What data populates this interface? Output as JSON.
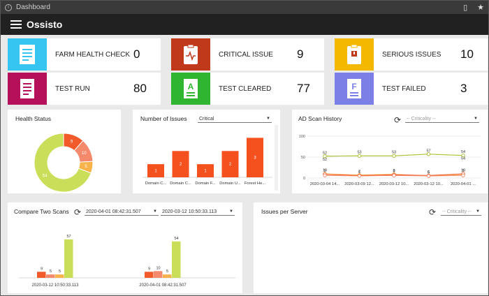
{
  "window": {
    "title": "Dashboard"
  },
  "app": {
    "title": "Ossisto"
  },
  "stats": [
    {
      "label": "FARM HEALTH CHECK",
      "value": "0",
      "color": "#36c5f0"
    },
    {
      "label": "CRITICAL ISSUE",
      "value": "9",
      "color": "#c0391b"
    },
    {
      "label": "SERIOUS ISSUES",
      "value": "10",
      "color": "#f5b800"
    },
    {
      "label": "TEST RUN",
      "value": "80",
      "color": "#b5115a"
    },
    {
      "label": "TEST CLEARED",
      "value": "77",
      "color": "#2fb52f"
    },
    {
      "label": "TEST FAILED",
      "value": "3",
      "color": "#7b7fe6"
    }
  ],
  "health": {
    "title": "Health Status",
    "chart_data": {
      "type": "pie",
      "values": [
        9,
        10,
        5,
        54
      ],
      "labels": [
        "9",
        "10",
        "5",
        "54"
      ],
      "colors": [
        "#f25a2a",
        "#f5896b",
        "#f7b24a",
        "#cbde5a"
      ]
    }
  },
  "issues": {
    "title": "Number of Issues",
    "dropdown": "Critical",
    "chart_data": {
      "type": "bar",
      "categories": [
        "Domain C...",
        "Domain C...",
        "Domain F...",
        "Domain U...",
        "Forest He..."
      ],
      "values": [
        1,
        2,
        1,
        2,
        3
      ],
      "ylim": [
        0,
        3.5
      ],
      "color": "#f4511e"
    }
  },
  "scan": {
    "title": "AD Scan History",
    "dropdown": "-- Criticality --",
    "chart_data": {
      "type": "line",
      "x": [
        "2020-03-04 14...",
        "2020-03-09 12...",
        "2020-03-12 10...",
        "2020-03-12 10...",
        "2020-04-01 ..."
      ],
      "yticks": [
        0,
        50,
        100
      ],
      "ylim": [
        0,
        100
      ],
      "series": [
        {
          "values": [
            52,
            53,
            53,
            57,
            54
          ],
          "labels": [
            "52",
            "53",
            "53",
            "57",
            "54"
          ],
          "color": "#cbde5a"
        },
        {
          "values": [
            52,
            53,
            53,
            57,
            54
          ],
          "labels": [
            "52",
            "",
            "",
            "",
            "54"
          ],
          "color": "#a9bf32"
        },
        {
          "values": [
            10,
            7,
            9,
            5,
            9
          ],
          "labels": [
            "10",
            "7",
            "9",
            "5",
            "9"
          ],
          "color": "#f7b24a"
        },
        {
          "values": [
            9,
            6,
            8,
            6,
            10
          ],
          "labels": [
            "9",
            "6",
            "8",
            "6",
            "10"
          ],
          "color": "#f25a2a"
        },
        {
          "values": [
            6,
            5,
            6,
            5,
            6
          ],
          "labels": [
            "",
            "",
            "",
            "",
            ""
          ],
          "color": "#f5896b"
        }
      ]
    }
  },
  "compare": {
    "title": "Compare Two Scans",
    "date1": "2020-04-01 08:42:31.507",
    "date2": "2020-03-12 10:50:33.113",
    "chart_data": {
      "type": "bar",
      "ylim": [
        0,
        60
      ],
      "colors": [
        "#f25a2a",
        "#f5896b",
        "#f7b24a",
        "#cbde5a"
      ],
      "groups": [
        {
          "label": "2020-03-12 10:50:33.113",
          "values": [
            9,
            5,
            5,
            57
          ]
        },
        {
          "label": "2020-04-01 08:42:31.507",
          "values": [
            9,
            10,
            5,
            54
          ]
        }
      ]
    }
  },
  "server": {
    "title": "Issues per Server",
    "dropdown": "-- Criticality --"
  }
}
